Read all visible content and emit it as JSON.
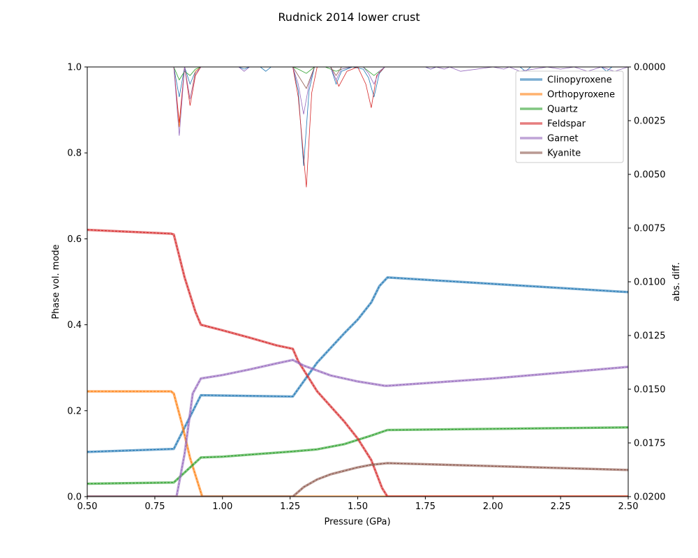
{
  "chart_data": {
    "type": "line",
    "title": "Rudnick 2014 lower crust",
    "xlabel": "Pressure (GPa)",
    "ylabel": "Phase vol. mode",
    "y2label": "abs. diff.",
    "xlim": [
      0.5,
      2.5
    ],
    "ylim": [
      0.0,
      1.0
    ],
    "y2lim": [
      0.0,
      0.02
    ],
    "y2_inverted": true,
    "xticks": [
      "0.50",
      "0.75",
      "1.00",
      "1.25",
      "1.50",
      "1.75",
      "2.00",
      "2.25",
      "2.50"
    ],
    "yticks": [
      "0.0",
      "0.2",
      "0.4",
      "0.6",
      "0.8",
      "1.0"
    ],
    "y2ticks": [
      "0.0000",
      "0.0025",
      "0.0050",
      "0.0075",
      "0.0100",
      "0.0125",
      "0.0150",
      "0.0175",
      "0.0200"
    ],
    "legend_position": "top-right",
    "grid": false,
    "series": [
      {
        "name": "Clinopyroxene",
        "color": "#1f77b4",
        "x": [
          0.5,
          0.82,
          0.92,
          1.26,
          1.35,
          1.45,
          1.5,
          1.55,
          1.58,
          1.61,
          2.5
        ],
        "values": [
          0.104,
          0.111,
          0.236,
          0.233,
          0.312,
          0.38,
          0.412,
          0.452,
          0.49,
          0.51,
          0.476
        ]
      },
      {
        "name": "Orthopyroxene",
        "color": "#ff7f0e",
        "x": [
          0.5,
          0.81,
          0.82,
          0.85,
          0.88,
          0.91,
          0.925,
          2.5
        ],
        "values": [
          0.245,
          0.245,
          0.24,
          0.17,
          0.09,
          0.03,
          0.0,
          0.0
        ]
      },
      {
        "name": "Quartz",
        "color": "#2ca02c",
        "x": [
          0.5,
          0.82,
          0.92,
          1.0,
          1.26,
          1.35,
          1.45,
          1.55,
          1.61,
          2.5
        ],
        "values": [
          0.03,
          0.033,
          0.091,
          0.093,
          0.105,
          0.11,
          0.122,
          0.142,
          0.155,
          0.161
        ]
      },
      {
        "name": "Feldspar",
        "color": "#d62728",
        "x": [
          0.5,
          0.81,
          0.82,
          0.86,
          0.9,
          0.92,
          1.0,
          1.1,
          1.2,
          1.26,
          1.28,
          1.35,
          1.45,
          1.5,
          1.55,
          1.59,
          1.61,
          2.5
        ],
        "values": [
          0.621,
          0.612,
          0.61,
          0.51,
          0.43,
          0.4,
          0.387,
          0.37,
          0.352,
          0.344,
          0.315,
          0.245,
          0.175,
          0.135,
          0.085,
          0.02,
          0.0,
          0.0
        ]
      },
      {
        "name": "Garnet",
        "color": "#9467bd",
        "x": [
          0.5,
          0.82,
          0.83,
          0.86,
          0.89,
          0.92,
          1.0,
          1.1,
          1.2,
          1.26,
          1.3,
          1.4,
          1.5,
          1.6,
          1.61,
          2.0,
          2.5
        ],
        "values": [
          0.0,
          0.0,
          0.0,
          0.1,
          0.24,
          0.275,
          0.283,
          0.296,
          0.31,
          0.318,
          0.305,
          0.282,
          0.268,
          0.258,
          0.258,
          0.275,
          0.302
        ]
      },
      {
        "name": "Kyanite",
        "color": "#8c564b",
        "x": [
          0.5,
          1.26,
          1.3,
          1.35,
          1.4,
          1.45,
          1.5,
          1.55,
          1.61,
          2.5
        ],
        "values": [
          0.0,
          0.0,
          0.022,
          0.04,
          0.052,
          0.06,
          0.068,
          0.074,
          0.078,
          0.062
        ]
      }
    ],
    "diff_series": [
      {
        "name": "Clinopyroxene",
        "color": "#1f77b4",
        "x": [
          0.5,
          0.82,
          0.84,
          0.86,
          0.88,
          0.9,
          0.92,
          1.06,
          1.08,
          1.1,
          1.14,
          1.16,
          1.18,
          1.24,
          1.26,
          1.28,
          1.3,
          1.32,
          1.34,
          1.36,
          1.4,
          1.42,
          1.44,
          1.48,
          1.52,
          1.54,
          1.56,
          1.58,
          1.6,
          1.75,
          1.77,
          1.79,
          2.1,
          2.12,
          2.14,
          2.4,
          2.42,
          2.44,
          2.5
        ],
        "values": [
          0.0,
          0.0,
          0.0014,
          0.0,
          0.0008,
          0.0002,
          0.0,
          0.0,
          0.0001,
          0.0,
          0.0,
          0.0002,
          0.0,
          0.0,
          0.0,
          0.0011,
          0.0046,
          0.0011,
          0.0,
          0.0,
          0.0,
          0.0008,
          0.0002,
          0.0,
          0.0001,
          0.0005,
          0.0014,
          0.0003,
          0.0,
          0.0,
          0.0001,
          0.0,
          0.0,
          0.0002,
          0.0,
          0.0,
          0.0002,
          0.0,
          0.0
        ]
      },
      {
        "name": "Orthopyroxene",
        "color": "#ff7f0e",
        "x": [
          0.5,
          0.82,
          0.84,
          0.86,
          0.88,
          0.9,
          0.92,
          2.5
        ],
        "values": [
          0.0,
          0.0,
          0.0028,
          0.0,
          0.0015,
          0.0002,
          0.0,
          0.0
        ]
      },
      {
        "name": "Quartz",
        "color": "#2ca02c",
        "x": [
          0.5,
          0.82,
          0.84,
          0.86,
          0.88,
          0.9,
          0.92,
          1.26,
          1.28,
          1.31,
          1.34,
          1.38,
          1.42,
          1.44,
          1.48,
          1.52,
          1.54,
          1.56,
          1.58,
          1.6,
          2.5
        ],
        "values": [
          0.0,
          0.0,
          0.0006,
          0.0002,
          0.0004,
          0.0001,
          0.0,
          0.0,
          0.0001,
          0.0003,
          0.0,
          0.0,
          0.0002,
          0.0001,
          0.0,
          0.0,
          0.0002,
          0.0004,
          0.0002,
          0.0,
          0.0
        ]
      },
      {
        "name": "Feldspar",
        "color": "#d62728",
        "x": [
          0.5,
          0.82,
          0.84,
          0.86,
          0.88,
          0.9,
          0.92,
          1.26,
          1.28,
          1.31,
          1.33,
          1.35,
          1.4,
          1.43,
          1.46,
          1.5,
          1.53,
          1.55,
          1.57,
          1.6,
          2.5
        ],
        "values": [
          0.0,
          0.0,
          0.0026,
          0.0,
          0.0018,
          0.0004,
          0.0,
          0.0,
          0.0014,
          0.0056,
          0.0012,
          0.0,
          0.0,
          0.0009,
          0.0002,
          0.0,
          0.0008,
          0.0019,
          0.0004,
          0.0,
          0.0
        ]
      },
      {
        "name": "Garnet",
        "color": "#9467bd",
        "x": [
          0.5,
          0.82,
          0.84,
          0.86,
          0.88,
          0.9,
          0.92,
          1.06,
          1.08,
          1.1,
          1.24,
          1.26,
          1.28,
          1.3,
          1.32,
          1.34,
          1.36,
          1.4,
          1.42,
          1.44,
          1.48,
          1.52,
          1.54,
          1.56,
          1.58,
          1.6,
          1.75,
          1.77,
          1.79,
          1.82,
          1.84,
          1.88,
          2.0,
          2.04,
          2.06,
          2.1,
          2.15,
          2.2,
          2.25,
          2.3,
          2.35,
          2.4,
          2.45,
          2.5
        ],
        "values": [
          0.0,
          0.0,
          0.0032,
          0.0,
          0.0015,
          0.0003,
          0.0,
          0.0,
          0.0002,
          0.0,
          0.0,
          0.0,
          0.0008,
          0.0022,
          0.0008,
          0.0,
          0.0,
          0.0,
          0.0006,
          0.0001,
          0.0,
          0.0,
          0.0003,
          0.0008,
          0.0002,
          0.0,
          0.0,
          0.0001,
          0.0,
          0.0001,
          0.0,
          0.0002,
          0.0,
          0.0001,
          0.0,
          0.0002,
          0.0001,
          0.0,
          0.0001,
          0.0,
          0.0002,
          0.0,
          0.0002,
          0.0
        ]
      },
      {
        "name": "Kyanite",
        "color": "#8c564b",
        "x": [
          0.5,
          1.26,
          1.28,
          1.31,
          1.34,
          1.4,
          1.42,
          1.44,
          1.5,
          2.5
        ],
        "values": [
          0.0,
          0.0,
          0.0004,
          0.001,
          0.0,
          0.0,
          0.0004,
          0.0,
          0.0,
          0.0
        ]
      }
    ]
  }
}
